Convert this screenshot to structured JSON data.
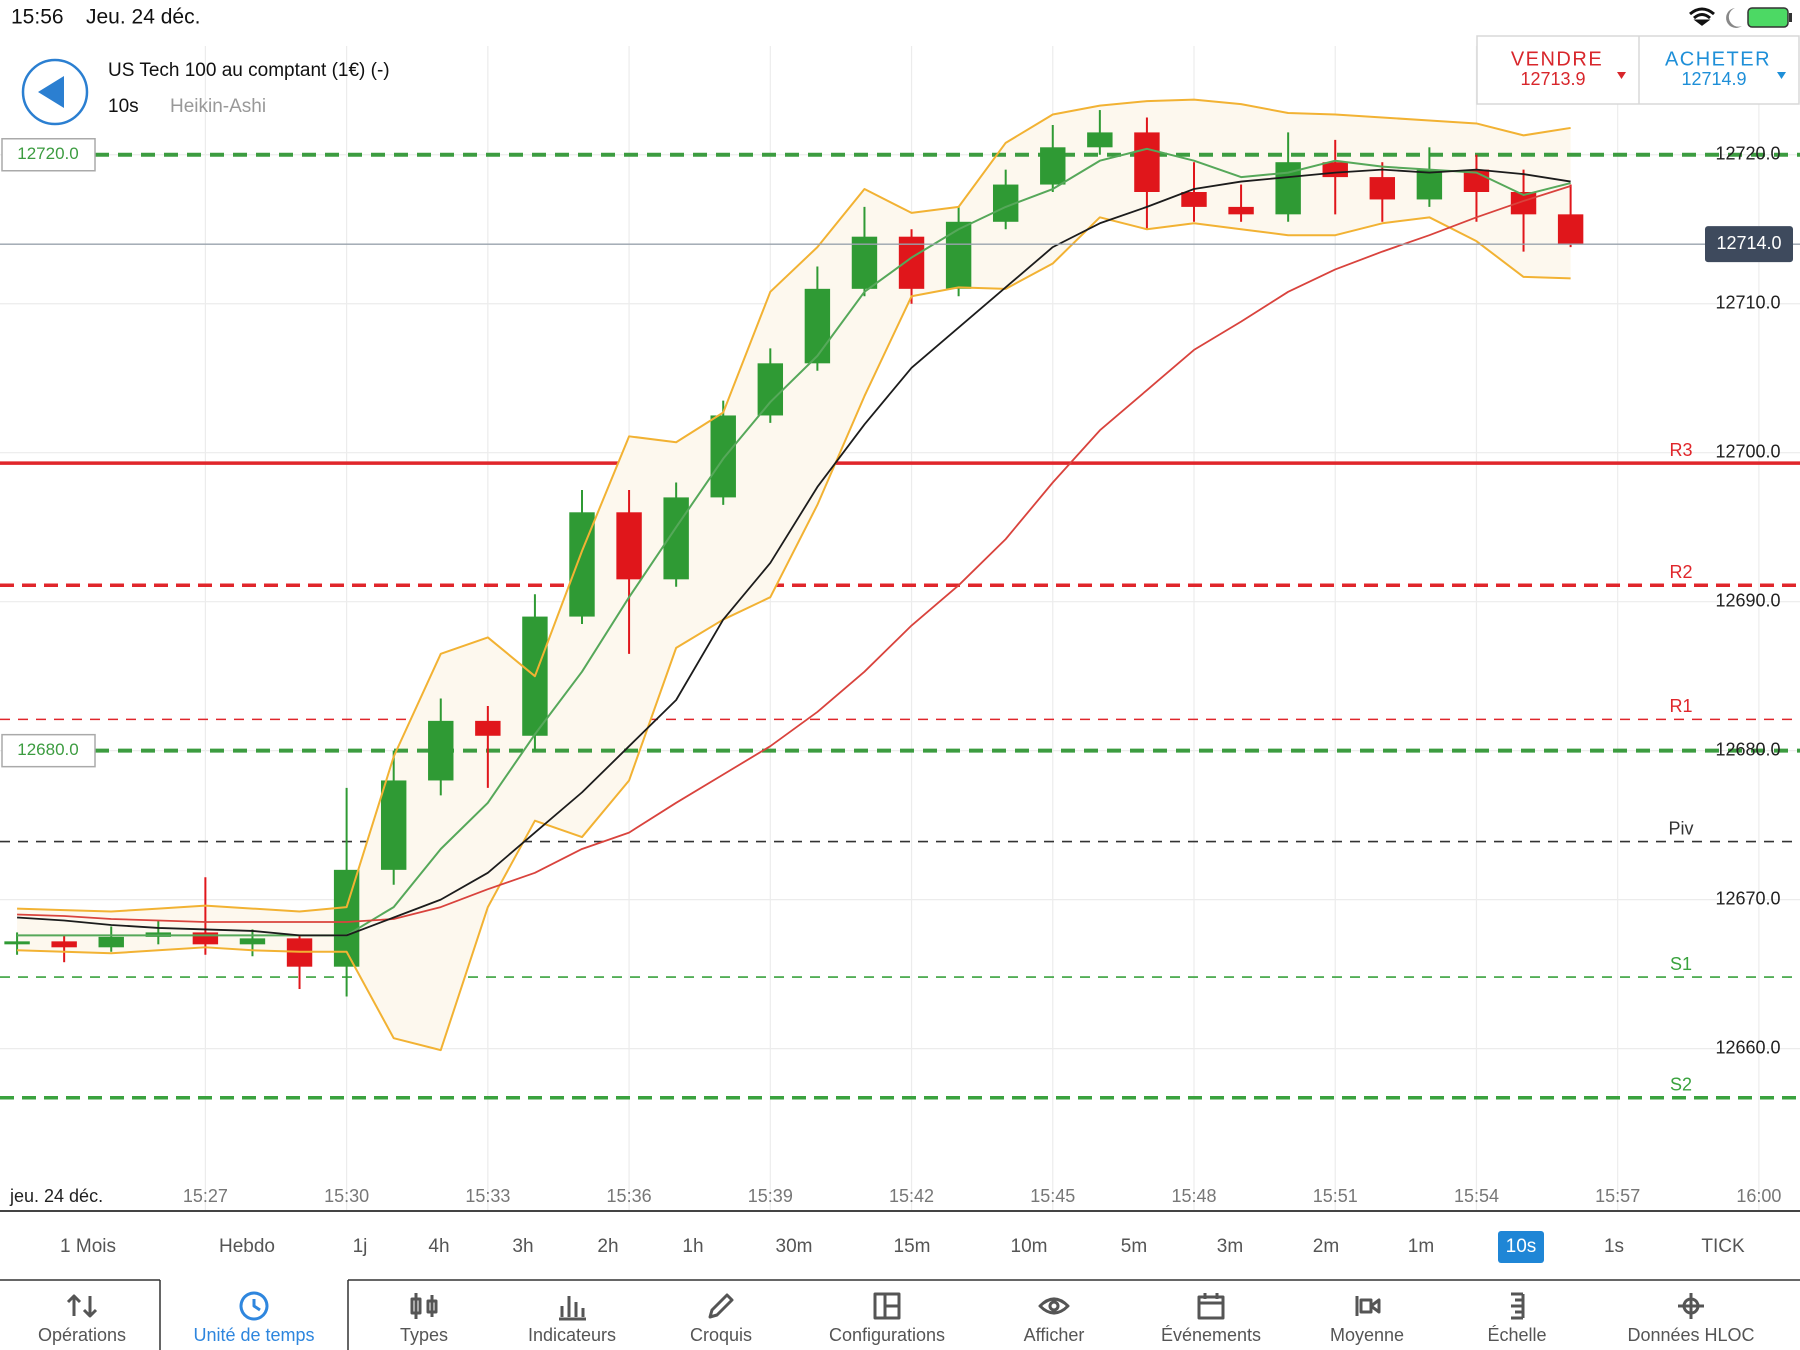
{
  "status_bar": {
    "time": "15:56",
    "date": "Jeu. 24 déc."
  },
  "header": {
    "instrument": "US Tech 100 au comptant (1€) (-)",
    "interval": "10s",
    "chart_style": "Heikin-Ashi"
  },
  "trade": {
    "sell_label": "VENDRE",
    "sell_price": "12713.9",
    "buy_label": "ACHETER",
    "buy_price": "12714.9"
  },
  "chart_data": {
    "type": "candlestick",
    "date_label": "jeu. 24 déc.",
    "x": [
      "15:23",
      "15:24",
      "15:25",
      "15:26",
      "15:27",
      "15:28",
      "15:29",
      "15:30",
      "15:31",
      "15:32",
      "15:33",
      "15:34",
      "15:35",
      "15:36",
      "15:37",
      "15:38",
      "15:39",
      "15:40",
      "15:41",
      "15:42",
      "15:43",
      "15:44",
      "15:45",
      "15:46",
      "15:47",
      "15:48",
      "15:49",
      "15:50",
      "15:51",
      "15:52",
      "15:53",
      "15:54",
      "15:55",
      "15:56"
    ],
    "open": [
      12667.0,
      12667.2,
      12666.8,
      12667.5,
      12667.8,
      12667.0,
      12667.4,
      12665.5,
      12672.0,
      12678.0,
      12682.0,
      12681.0,
      12689.0,
      12696.0,
      12691.5,
      12697.0,
      12702.5,
      12706.0,
      12711.0,
      12714.5,
      12711.0,
      12715.5,
      12718.0,
      12720.5,
      12721.5,
      12717.5,
      12716.5,
      12716.0,
      12719.5,
      12718.5,
      12717.0,
      12719.0,
      12717.5,
      12716.0
    ],
    "high": [
      12667.8,
      12667.6,
      12668.2,
      12668.6,
      12671.5,
      12668.0,
      12667.6,
      12677.5,
      12680.0,
      12683.5,
      12683.0,
      12690.5,
      12697.5,
      12697.5,
      12698.0,
      12703.5,
      12707.0,
      12712.5,
      12716.5,
      12715.0,
      12716.5,
      12719.0,
      12722.0,
      12723.0,
      12722.5,
      12719.5,
      12718.0,
      12721.5,
      12721.0,
      12719.5,
      12720.5,
      12720.0,
      12719.0,
      12718.0
    ],
    "low": [
      12666.3,
      12665.8,
      12666.5,
      12667.0,
      12666.3,
      12666.2,
      12664.0,
      12663.5,
      12671.0,
      12677.0,
      12677.5,
      12680.0,
      12688.5,
      12686.5,
      12691.0,
      12696.5,
      12702.0,
      12705.5,
      12710.5,
      12710.0,
      12710.5,
      12715.0,
      12717.5,
      12720.0,
      12715.0,
      12715.5,
      12715.5,
      12715.5,
      12716.0,
      12715.5,
      12716.5,
      12715.5,
      12713.5,
      12713.8
    ],
    "close": [
      12667.2,
      12666.8,
      12667.5,
      12667.8,
      12667.0,
      12667.4,
      12665.5,
      12672.0,
      12678.0,
      12682.0,
      12681.0,
      12689.0,
      12696.0,
      12691.5,
      12697.0,
      12702.5,
      12706.0,
      12711.0,
      12714.5,
      12711.0,
      12715.5,
      12718.0,
      12720.5,
      12721.5,
      12717.5,
      12716.5,
      12716.0,
      12719.5,
      12718.5,
      12717.0,
      12719.0,
      12717.5,
      12716.0,
      12714.0
    ],
    "up_color": "#2f9a34",
    "down_color": "#e0161b",
    "bollinger": {
      "color": "#f2b233",
      "fill": "#fdf8ee",
      "middle_color": "#56a85a",
      "upper": [
        12669.4,
        12669.3,
        12669.2,
        12669.4,
        12669.6,
        12669.4,
        12669.2,
        12669.5,
        12679.6,
        12686.5,
        12687.6,
        12685,
        12693.4,
        12701.1,
        12700.7,
        12702.7,
        12710.8,
        12713.8,
        12717.7,
        12716.1,
        12716.5,
        12720.8,
        12722.7,
        12723.3,
        12723.6,
        12723.7,
        12723.4,
        12722.8,
        12722.7,
        12722.5,
        12722.3,
        12722.1,
        12721.3,
        12721.8
      ],
      "middle": [
        12667.6,
        12667.6,
        12667.6,
        12667.6,
        12667.6,
        12667.6,
        12667.6,
        12667.6,
        12669.5,
        12673.4,
        12676.5,
        12681.1,
        12685.3,
        12690.3,
        12695,
        12699.6,
        12703.4,
        12706.5,
        12710.8,
        12713.1,
        12715,
        12716.5,
        12717.7,
        12719.6,
        12720.4,
        12719.6,
        12718.5,
        12718.8,
        12719.6,
        12719.2,
        12719,
        12718.8,
        12717.3,
        12718.1
      ],
      "lower": [
        12666.6,
        12666.5,
        12666.4,
        12666.6,
        12666.8,
        12666.6,
        12666.5,
        12666.5,
        12660.7,
        12659.9,
        12669.5,
        12675.3,
        12674.2,
        12678,
        12686.9,
        12688.8,
        12690.3,
        12696.5,
        12703.8,
        12710.5,
        12711.1,
        12711,
        12712.7,
        12715.8,
        12715,
        12715.4,
        12715,
        12714.6,
        12714.6,
        12715.4,
        12715.8,
        12714.2,
        12711.8,
        12711.7
      ]
    },
    "lines": [
      {
        "color": "#d9433d",
        "values": [
          12669,
          12668.9,
          12668.7,
          12668.6,
          12668.5,
          12668.5,
          12668.5,
          12668.5,
          12668.7,
          12669.5,
          12670.7,
          12671.8,
          12673.4,
          12674.5,
          12676.5,
          12678.4,
          12680.3,
          12682.6,
          12685.3,
          12688.4,
          12691.1,
          12694.2,
          12698,
          12701.5,
          12704.2,
          12706.9,
          12708.8,
          12710.8,
          12712.3,
          12713.5,
          12714.6,
          12715.8,
          12716.9,
          12717.9
        ]
      },
      {
        "color": "#1c1c1c",
        "values": [
          12668.8,
          12668.6,
          12668.3,
          12668.1,
          12668,
          12667.9,
          12667.6,
          12667.6,
          12668.8,
          12670,
          12671.8,
          12674.5,
          12677.2,
          12680.3,
          12683.4,
          12688.8,
          12692.6,
          12697.7,
          12701.9,
          12705.7,
          12708.4,
          12711.1,
          12713.8,
          12715.4,
          12716.5,
          12717.7,
          12718.2,
          12718.5,
          12718.8,
          12719,
          12718.8,
          12719,
          12718.7,
          12718.2
        ]
      }
    ],
    "pivots": [
      {
        "label": "R3",
        "value": 12699.3,
        "color": "#e0262b",
        "style": "solid",
        "weight": "heavy"
      },
      {
        "label": "R2",
        "value": 12691.1,
        "color": "#e0262b",
        "style": "dashed",
        "weight": "heavy"
      },
      {
        "label": "R1",
        "value": 12682.1,
        "color": "#e0262b",
        "style": "dashed",
        "weight": "light"
      },
      {
        "label": "Piv",
        "value": 12673.9,
        "color": "#333333",
        "style": "dashed",
        "weight": "light"
      },
      {
        "label": "S1",
        "value": 12664.8,
        "color": "#3aa23e",
        "style": "dashed",
        "weight": "light"
      },
      {
        "label": "S2",
        "value": 12656.7,
        "color": "#3aa23e",
        "style": "dashed",
        "weight": "heavy"
      }
    ],
    "alerts": [
      {
        "value": 12720,
        "label": "12720.0"
      },
      {
        "value": 12680,
        "label": "12680.0"
      }
    ],
    "alert_color": "#3c9c40",
    "last_price": {
      "value": 12714,
      "label": "12714.0"
    },
    "ylim": [
      12649.1,
      12727.3
    ],
    "yticks": [
      {
        "value": 12660,
        "label": "12660.0"
      },
      {
        "value": 12670,
        "label": "12670.0"
      },
      {
        "value": 12680,
        "label": "12680.0"
      },
      {
        "value": 12690,
        "label": "12690.0"
      },
      {
        "value": 12700,
        "label": "12700.0"
      },
      {
        "value": 12710,
        "label": "12710.0"
      },
      {
        "value": 12720,
        "label": "12720.0"
      }
    ],
    "xlim": [
      "15:22",
      "16:01"
    ],
    "xticks": [
      "15:27",
      "15:30",
      "15:33",
      "15:36",
      "15:39",
      "15:42",
      "15:45",
      "15:48",
      "15:51",
      "15:54",
      "15:57",
      "16:00"
    ],
    "grid": true
  },
  "timeframes": {
    "items": [
      "1 Mois",
      "Hebdo",
      "1j",
      "4h",
      "3h",
      "2h",
      "1h",
      "30m",
      "15m",
      "10m",
      "5m",
      "3m",
      "2m",
      "1m",
      "10s",
      "1s",
      "TICK"
    ],
    "selected": 14
  },
  "toolbar": {
    "items": [
      "Opérations",
      "Unité de temps",
      "Types",
      "Indicateurs",
      "Croquis",
      "Configurations",
      "Afficher",
      "Événements",
      "Moyenne",
      "Échelle",
      "Données HLOC"
    ],
    "selected": 1
  }
}
